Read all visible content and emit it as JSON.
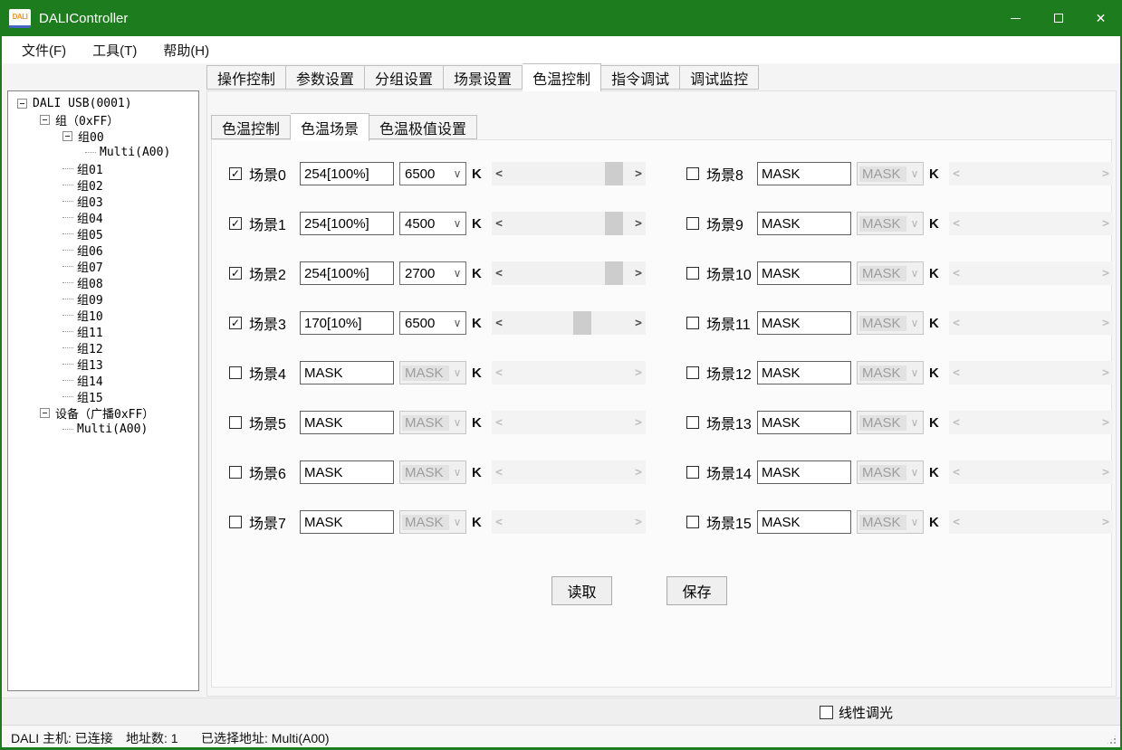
{
  "window": {
    "title": "DALIController",
    "icon_text": "DALI",
    "controls": {
      "minimize": "minimize",
      "maximize": "maximize",
      "close": "✕"
    }
  },
  "menu": {
    "items": [
      "文件(F)",
      "工具(T)",
      "帮助(H)"
    ]
  },
  "tree": {
    "items": [
      {
        "label": "DALI USB(0001)",
        "level": 0,
        "expander": true
      },
      {
        "label": "组（0xFF）",
        "level": 1,
        "expander": true
      },
      {
        "label": "组00",
        "level": 2,
        "expander": true
      },
      {
        "label": "Multi(A00)",
        "level": 3,
        "expander": false
      },
      {
        "label": "组01",
        "level": 2,
        "expander": false
      },
      {
        "label": "组02",
        "level": 2,
        "expander": false
      },
      {
        "label": "组03",
        "level": 2,
        "expander": false
      },
      {
        "label": "组04",
        "level": 2,
        "expander": false
      },
      {
        "label": "组05",
        "level": 2,
        "expander": false
      },
      {
        "label": "组06",
        "level": 2,
        "expander": false
      },
      {
        "label": "组07",
        "level": 2,
        "expander": false
      },
      {
        "label": "组08",
        "level": 2,
        "expander": false
      },
      {
        "label": "组09",
        "level": 2,
        "expander": false
      },
      {
        "label": "组10",
        "level": 2,
        "expander": false
      },
      {
        "label": "组11",
        "level": 2,
        "expander": false
      },
      {
        "label": "组12",
        "level": 2,
        "expander": false
      },
      {
        "label": "组13",
        "level": 2,
        "expander": false
      },
      {
        "label": "组14",
        "level": 2,
        "expander": false
      },
      {
        "label": "组15",
        "level": 2,
        "expander": false
      },
      {
        "label": "设备（广播0xFF）",
        "level": 1,
        "expander": true
      },
      {
        "label": "Multi(A00)",
        "level": 2,
        "expander": false
      }
    ]
  },
  "tabs": {
    "items": [
      "操作控制",
      "参数设置",
      "分组设置",
      "场景设置",
      "色温控制",
      "指令调试",
      "调试监控"
    ],
    "selected": "色温控制"
  },
  "subtabs": {
    "items": [
      "色温控制",
      "色温场景",
      "色温极值设置"
    ],
    "selected": "色温场景"
  },
  "scenes": {
    "unit_label": "K",
    "check_glyph": "✓",
    "arrow_left": "<",
    "arrow_right": ">",
    "items": [
      {
        "label": "场景0",
        "checked": true,
        "level": "254[100%]",
        "cct": "6500",
        "enabled": true,
        "scroll_pos": 0.92
      },
      {
        "label": "场景1",
        "checked": true,
        "level": "254[100%]",
        "cct": "4500",
        "enabled": true,
        "scroll_pos": 0.92
      },
      {
        "label": "场景2",
        "checked": true,
        "level": "254[100%]",
        "cct": "2700",
        "enabled": true,
        "scroll_pos": 0.92
      },
      {
        "label": "场景3",
        "checked": true,
        "level": "170[10%]",
        "cct": "6500",
        "enabled": true,
        "scroll_pos": 0.63
      },
      {
        "label": "场景4",
        "checked": false,
        "level": "MASK",
        "cct": "MASK",
        "enabled": false,
        "scroll_pos": null
      },
      {
        "label": "场景5",
        "checked": false,
        "level": "MASK",
        "cct": "MASK",
        "enabled": false,
        "scroll_pos": null
      },
      {
        "label": "场景6",
        "checked": false,
        "level": "MASK",
        "cct": "MASK",
        "enabled": false,
        "scroll_pos": null
      },
      {
        "label": "场景7",
        "checked": false,
        "level": "MASK",
        "cct": "MASK",
        "enabled": false,
        "scroll_pos": null
      },
      {
        "label": "场景8",
        "checked": false,
        "level": "MASK",
        "cct": "MASK",
        "enabled": false,
        "scroll_pos": null
      },
      {
        "label": "场景9",
        "checked": false,
        "level": "MASK",
        "cct": "MASK",
        "enabled": false,
        "scroll_pos": null
      },
      {
        "label": "场景10",
        "checked": false,
        "level": "MASK",
        "cct": "MASK",
        "enabled": false,
        "scroll_pos": null
      },
      {
        "label": "场景11",
        "checked": false,
        "level": "MASK",
        "cct": "MASK",
        "enabled": false,
        "scroll_pos": null
      },
      {
        "label": "场景12",
        "checked": false,
        "level": "MASK",
        "cct": "MASK",
        "enabled": false,
        "scroll_pos": null
      },
      {
        "label": "场景13",
        "checked": false,
        "level": "MASK",
        "cct": "MASK",
        "enabled": false,
        "scroll_pos": null
      },
      {
        "label": "场景14",
        "checked": false,
        "level": "MASK",
        "cct": "MASK",
        "enabled": false,
        "scroll_pos": null
      },
      {
        "label": "场景15",
        "checked": false,
        "level": "MASK",
        "cct": "MASK",
        "enabled": false,
        "scroll_pos": null
      }
    ]
  },
  "buttons": {
    "read": "读取",
    "save": "保存"
  },
  "footer": {
    "linear_dimming_label": "线性调光",
    "linear_dimming_checked": false
  },
  "statusbar": {
    "host": "DALI 主机: 已连接",
    "address_count": "地址数: 1",
    "selected_address": "已选择地址: Multi(A00)"
  },
  "colors": {
    "titlebar_green": "#1d7c1d",
    "scrollbar_thumb": "#cdcdcd"
  }
}
